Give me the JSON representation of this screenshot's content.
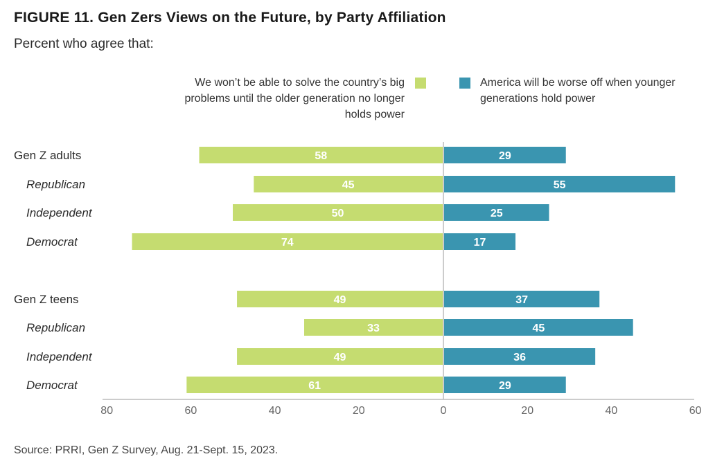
{
  "title": "FIGURE 11.  Gen Zers Views on the Future, by Party Affiliation",
  "subtitle": "Percent who agree that:",
  "source": "Source: PRRI, Gen Z Survey, Aug. 21-Sept. 15, 2023.",
  "colors": {
    "left_series": "#c5dc70",
    "right_series": "#3a95b0",
    "axis": "#bbbbbb",
    "tick_text": "#666666"
  },
  "chart_data": {
    "type": "bar",
    "orientation": "diverging-horizontal",
    "series": [
      {
        "name": "We won’t be able to solve the country’s big problems until the older generation no longer holds power",
        "side": "left",
        "values": [
          58,
          45,
          50,
          74,
          49,
          33,
          49,
          61
        ]
      },
      {
        "name": "America will be worse off when younger generations hold power",
        "side": "right",
        "values": [
          29,
          55,
          25,
          17,
          37,
          45,
          36,
          29
        ]
      }
    ],
    "categories": [
      {
        "label": "Gen Z adults",
        "group_header": true
      },
      {
        "label": "Republican",
        "group_header": false
      },
      {
        "label": "Independent",
        "group_header": false
      },
      {
        "label": "Democrat",
        "group_header": false
      },
      {
        "label": "Gen Z teens",
        "group_header": true
      },
      {
        "label": "Republican",
        "group_header": false
      },
      {
        "label": "Independent",
        "group_header": false
      },
      {
        "label": "Democrat",
        "group_header": false
      }
    ],
    "x_left_range": [
      0,
      80
    ],
    "x_right_range": [
      0,
      60
    ],
    "x_ticks_left": [
      80,
      60,
      40,
      20
    ],
    "x_ticks_right": [
      0,
      20,
      40,
      60
    ],
    "legend_position": "top"
  }
}
